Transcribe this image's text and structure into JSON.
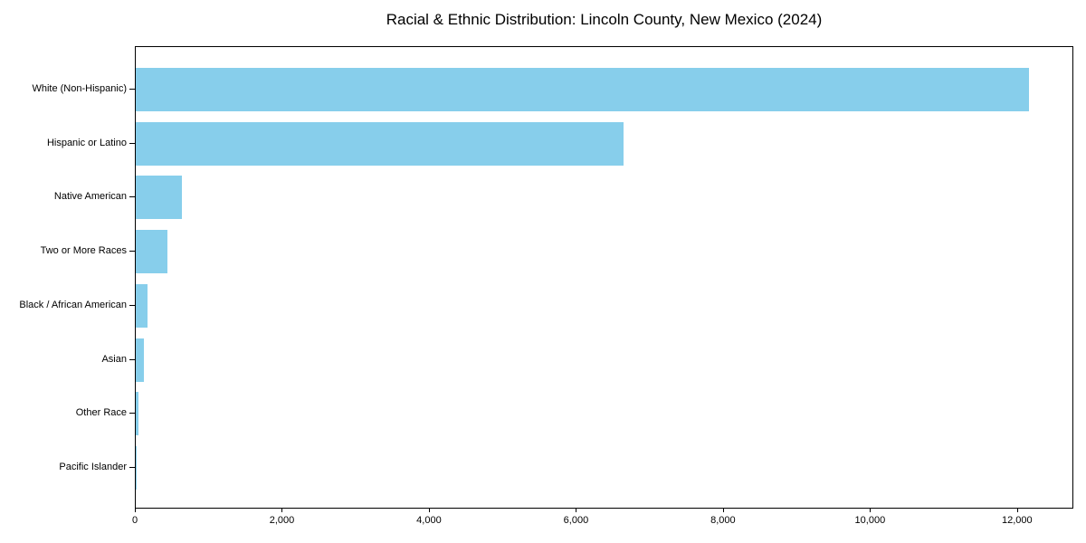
{
  "chart_data": {
    "type": "bar",
    "orientation": "horizontal",
    "title": "Racial & Ethnic Distribution: Lincoln County, New Mexico (2024)",
    "categories": [
      "White (Non-Hispanic)",
      "Hispanic or Latino",
      "Native American",
      "Two or More Races",
      "Black / African American",
      "Asian",
      "Other Race",
      "Pacific Islander"
    ],
    "values": [
      12150,
      6640,
      630,
      435,
      165,
      115,
      40,
      5
    ],
    "bar_color": "#87CEEB",
    "axis_color": "#000000",
    "background_color": "#ffffff",
    "xlabel": "",
    "ylabel": "",
    "xlim": [
      0,
      12765
    ],
    "x_ticks": [
      {
        "value": 0,
        "label": "0"
      },
      {
        "value": 2000,
        "label": "2,000"
      },
      {
        "value": 4000,
        "label": "4,000"
      },
      {
        "value": 6000,
        "label": "6,000"
      },
      {
        "value": 8000,
        "label": "8,000"
      },
      {
        "value": 10000,
        "label": "10,000"
      },
      {
        "value": 12000,
        "label": "12,000"
      }
    ],
    "grid": false,
    "legend_position": "none",
    "value_labels_shown": false
  }
}
